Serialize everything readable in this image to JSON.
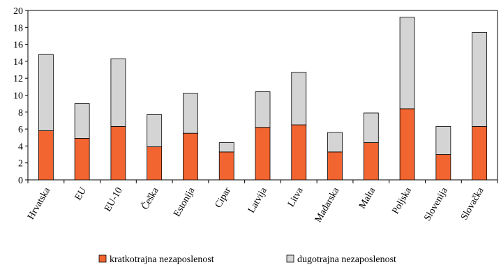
{
  "chart_data": {
    "type": "bar",
    "stacked": true,
    "title": "",
    "xlabel": "",
    "ylabel": "",
    "ylim": [
      0,
      20
    ],
    "yticks": [
      0,
      2,
      4,
      6,
      8,
      10,
      12,
      14,
      16,
      18,
      20
    ],
    "grid": false,
    "legend_position": "bottom",
    "categories": [
      "Hrvatska",
      "EU",
      "EU-10",
      "Češka",
      "Estonija",
      "Cipar",
      "Latvija",
      "Litva",
      "Mađarska",
      "Malta",
      "Poljska",
      "Slovenija",
      "Slovačka"
    ],
    "series": [
      {
        "name": "kratkotrajna nezaposlenost",
        "color": "#f26430",
        "values": [
          5.8,
          4.9,
          6.3,
          3.9,
          5.5,
          3.3,
          6.2,
          6.5,
          3.3,
          4.4,
          8.4,
          3.0,
          6.3
        ]
      },
      {
        "name": "dugotrajna nezaposlenost",
        "color": "#d4d4d4",
        "values": [
          9.0,
          4.1,
          8.0,
          3.8,
          4.7,
          1.1,
          4.2,
          6.2,
          2.3,
          3.5,
          10.8,
          3.3,
          11.1
        ]
      }
    ]
  }
}
